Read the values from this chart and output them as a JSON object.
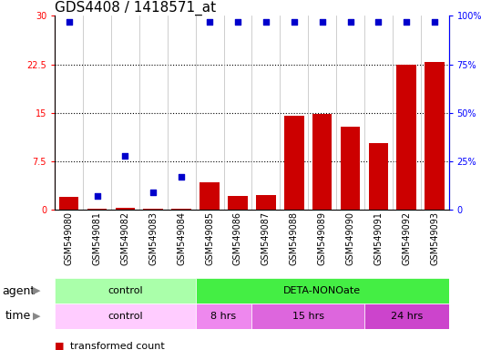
{
  "title": "GDS4408 / 1418571_at",
  "samples": [
    "GSM549080",
    "GSM549081",
    "GSM549082",
    "GSM549083",
    "GSM549084",
    "GSM549085",
    "GSM549086",
    "GSM549087",
    "GSM549088",
    "GSM549089",
    "GSM549090",
    "GSM549091",
    "GSM549092",
    "GSM549093"
  ],
  "transformed_count": [
    2.0,
    0.25,
    0.35,
    0.2,
    0.25,
    4.3,
    2.1,
    2.3,
    14.6,
    14.8,
    12.8,
    10.3,
    22.5,
    22.8
  ],
  "percentile_rank": [
    97,
    7,
    28,
    9,
    17,
    97,
    97,
    97,
    97,
    97,
    97,
    97,
    97,
    97
  ],
  "ylim_left": [
    0,
    30
  ],
  "ylim_right": [
    0,
    100
  ],
  "yticks_left": [
    0,
    7.5,
    15,
    22.5,
    30
  ],
  "yticks_right": [
    0,
    25,
    50,
    75,
    100
  ],
  "ytick_labels_left": [
    "0",
    "7.5",
    "15",
    "22.5",
    "30"
  ],
  "ytick_labels_right": [
    "0",
    "25%",
    "50%",
    "75%",
    "100%"
  ],
  "agent_groups": [
    {
      "label": "control",
      "start": 0,
      "end": 5,
      "color": "#aaffaa"
    },
    {
      "label": "DETA-NONOate",
      "start": 5,
      "end": 14,
      "color": "#44ee44"
    }
  ],
  "time_groups": [
    {
      "label": "control",
      "start": 0,
      "end": 5,
      "color": "#ffccff"
    },
    {
      "label": "8 hrs",
      "start": 5,
      "end": 7,
      "color": "#ee88ee"
    },
    {
      "label": "15 hrs",
      "start": 7,
      "end": 11,
      "color": "#dd66dd"
    },
    {
      "label": "24 hrs",
      "start": 11,
      "end": 14,
      "color": "#cc44cc"
    }
  ],
  "bar_color": "#cc0000",
  "dot_color": "#0000cc",
  "bar_width": 0.7,
  "title_fontsize": 11,
  "tick_fontsize": 7,
  "label_fontsize": 8,
  "row_label_fontsize": 9
}
